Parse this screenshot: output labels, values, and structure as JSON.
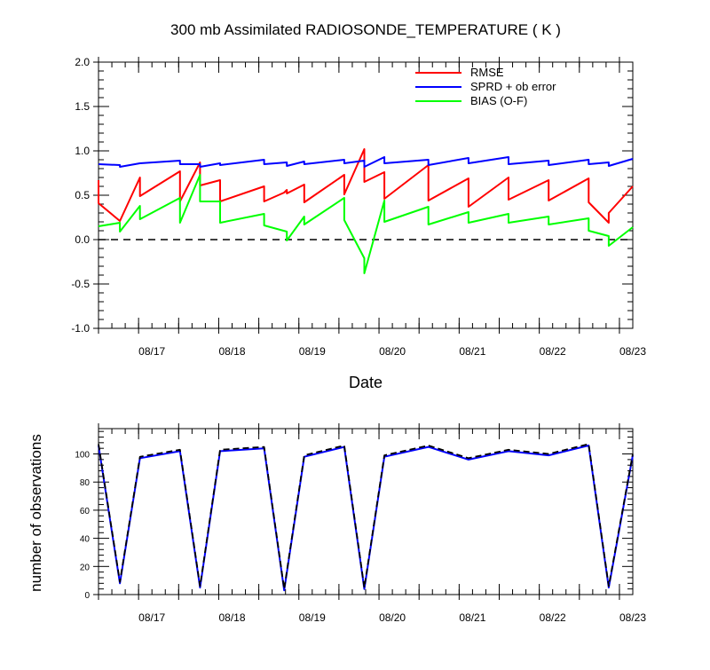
{
  "chart_data": [
    {
      "type": "line",
      "title": "300 mb Assimilated RADIOSONDE_TEMPERATURE ( K )",
      "xlabel": "Date",
      "ylabel": "",
      "ylim": [
        -1.0,
        2.0
      ],
      "xlim": [
        0,
        40
      ],
      "x_unit": "6-hourly analysis steps from start of plot",
      "y_ticks": [
        -1.0,
        -0.5,
        0.0,
        0.5,
        1.0,
        1.5,
        2.0
      ],
      "y_tick_labels": [
        "-1.0",
        "-0.5",
        "0.0",
        "0.5",
        "1.0",
        "1.5",
        "2.0"
      ],
      "x_ticks": [
        4,
        10,
        16,
        22,
        28,
        34,
        40
      ],
      "x_tick_labels": [
        "08/17",
        "08/18",
        "08/19",
        "08/20",
        "08/21",
        "08/22",
        "08/23"
      ],
      "zero_line": true,
      "grid": false,
      "legend_position": "top-right",
      "series": [
        {
          "name": "RMSE",
          "color": "#ff0000",
          "x": [
            0,
            0,
            1.6,
            1.6,
            3.1,
            3.1,
            6.1,
            6.1,
            7.6,
            7.6,
            9.1,
            9.1,
            12.4,
            12.4,
            13.9,
            13.9,
            14.1,
            14.1,
            15.4,
            15.4,
            18.4,
            18.4,
            19.9,
            19.9,
            21.4,
            21.4,
            24.7,
            24.7,
            27.7,
            27.7,
            30.7,
            30.7,
            33.7,
            33.7,
            36.7,
            36.7,
            38.2,
            38.2,
            40
          ],
          "y": [
            0.67,
            0.41,
            0.21,
            0.21,
            0.7,
            0.49,
            0.77,
            0.43,
            0.87,
            0.61,
            0.67,
            0.43,
            0.6,
            0.43,
            0.53,
            0.53,
            0.56,
            0.52,
            0.62,
            0.42,
            0.73,
            0.51,
            1.02,
            0.65,
            0.76,
            0.46,
            0.84,
            0.44,
            0.69,
            0.37,
            0.7,
            0.45,
            0.67,
            0.44,
            0.69,
            0.42,
            0.19,
            0.3,
            0.6
          ]
        },
        {
          "name": "SPRD + ob error",
          "color": "#0000ff",
          "x": [
            0,
            1.6,
            1.6,
            3.1,
            6.1,
            6.1,
            7.6,
            7.6,
            9.1,
            9.1,
            12.4,
            12.4,
            14.1,
            14.1,
            15.4,
            15.4,
            18.4,
            18.4,
            19.9,
            19.9,
            21.4,
            21.4,
            24.7,
            24.7,
            27.7,
            27.7,
            30.7,
            30.7,
            33.7,
            33.7,
            36.7,
            36.7,
            38.2,
            38.2,
            40
          ],
          "y": [
            0.85,
            0.84,
            0.82,
            0.86,
            0.89,
            0.85,
            0.85,
            0.82,
            0.86,
            0.84,
            0.9,
            0.85,
            0.87,
            0.83,
            0.88,
            0.85,
            0.9,
            0.86,
            0.89,
            0.82,
            0.93,
            0.86,
            0.9,
            0.84,
            0.92,
            0.86,
            0.93,
            0.85,
            0.89,
            0.84,
            0.9,
            0.85,
            0.87,
            0.83,
            0.91
          ]
        },
        {
          "name": "BIAS (O-F)",
          "color": "#00ff00",
          "x": [
            0,
            1.6,
            1.6,
            3.1,
            3.1,
            6.1,
            6.1,
            7.6,
            7.6,
            9.1,
            9.1,
            12.4,
            12.4,
            14.1,
            14.1,
            15.4,
            15.4,
            18.4,
            18.4,
            19.9,
            19.9,
            21.4,
            21.4,
            24.7,
            24.7,
            27.7,
            27.7,
            30.7,
            30.7,
            33.7,
            33.7,
            36.7,
            36.7,
            38.2,
            38.2,
            40
          ],
          "y": [
            0.15,
            0.19,
            0.09,
            0.38,
            0.23,
            0.47,
            0.19,
            0.73,
            0.43,
            0.43,
            0.19,
            0.29,
            0.16,
            0.09,
            -0.01,
            0.26,
            0.17,
            0.47,
            0.22,
            -0.21,
            -0.38,
            0.44,
            0.2,
            0.37,
            0.17,
            0.31,
            0.19,
            0.29,
            0.19,
            0.26,
            0.17,
            0.24,
            0.1,
            0.04,
            -0.07,
            0.14
          ]
        }
      ]
    },
    {
      "type": "line",
      "title": "",
      "xlabel": "",
      "ylabel": "number of observations",
      "ylim": [
        0,
        118
      ],
      "xlim": [
        0,
        40
      ],
      "y_ticks": [
        0,
        20,
        40,
        60,
        80,
        100
      ],
      "y_tick_labels": [
        "0",
        "20",
        "40",
        "60",
        "80",
        "100"
      ],
      "x_ticks": [
        4,
        10,
        16,
        22,
        28,
        34,
        40
      ],
      "x_tick_labels": [
        "08/17",
        "08/18",
        "08/19",
        "08/20",
        "08/21",
        "08/22",
        "08/23"
      ],
      "grid": false,
      "series": [
        {
          "color": "#0000ff",
          "dash": "solid",
          "x": [
            0,
            1.6,
            3.1,
            6.1,
            7.6,
            9.1,
            12.4,
            13.9,
            15.4,
            18.4,
            19.9,
            21.4,
            24.7,
            27.7,
            30.7,
            33.7,
            36.7,
            38.2,
            40
          ],
          "y": [
            106,
            8,
            97,
            102,
            5,
            102,
            104,
            3,
            98,
            105,
            4,
            98,
            105,
            96,
            102,
            99,
            106,
            5,
            99
          ]
        },
        {
          "color": "#000000",
          "dash": "dashed",
          "x": [
            0,
            1.6,
            3.1,
            6.1,
            7.6,
            9.1,
            12.4,
            13.9,
            15.4,
            18.4,
            19.9,
            21.4,
            24.7,
            27.7,
            30.7,
            33.7,
            36.7,
            38.2,
            40
          ],
          "y": [
            107,
            9,
            98,
            103,
            6,
            103,
            105,
            4,
            99,
            106,
            5,
            99,
            106,
            97,
            103,
            100,
            107,
            6,
            100
          ]
        }
      ]
    }
  ]
}
